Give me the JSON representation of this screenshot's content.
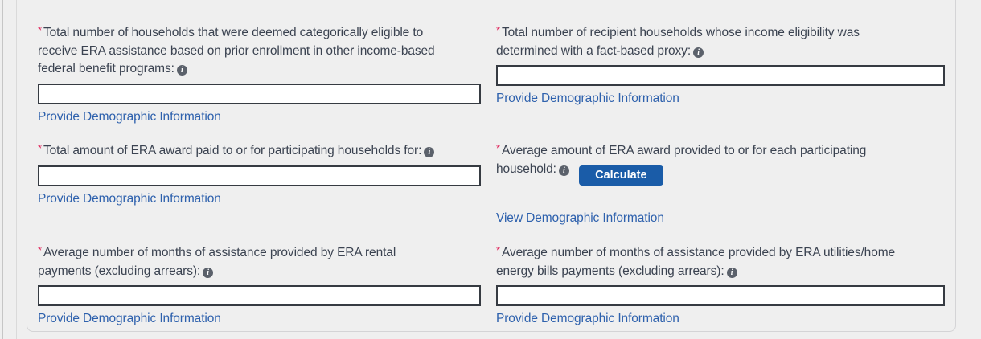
{
  "colors": {
    "background": "#efefef",
    "panel_border": "#d4d4d6",
    "label_text": "#3b4351",
    "required_red": "#e12c60",
    "info_icon_gray": "#5b616b",
    "input_border": "#363b42",
    "link_blue": "#2e61ad",
    "button_blue": "#1a5ca8"
  },
  "symbols": {
    "required": "*",
    "info": "i"
  },
  "fields": [
    {
      "label": "Total number of households that were deemed categorically eligible to receive ERA assistance based on prior enrollment in other income-based federal benefit programs:",
      "lines": [
        "Total number of households that were deemed categorically eligible to",
        "receive ERA assistance based on prior enrollment in other income-based",
        "federal benefit programs:"
      ],
      "value": "",
      "link_label": "Provide Demographic Information"
    },
    {
      "label": "Total number of recipient households whose income eligibility was determined with a fact-based proxy:",
      "lines": [
        "Total number of recipient households whose income eligibility was",
        "determined with a fact-based proxy:"
      ],
      "value": "",
      "link_label": "Provide Demographic Information"
    },
    {
      "label": "Total amount of ERA award paid to or for participating households for:",
      "lines": [
        "Total amount of ERA award paid to or for participating households for:"
      ],
      "value": "",
      "link_label": "Provide Demographic Information"
    },
    {
      "label": "Average amount of ERA award provided to or for each participating household:",
      "lines": [
        "Average amount of ERA award provided to or for each participating",
        "household:"
      ],
      "button_label": "Calculate",
      "link_label": "View Demographic Information"
    },
    {
      "label": "Average number of months of assistance provided by ERA rental payments (excluding arrears):",
      "lines": [
        "Average number of months of assistance provided by ERA rental",
        "payments (excluding arrears):"
      ],
      "value": "",
      "link_label": "Provide Demographic Information"
    },
    {
      "label": "Average number of months of assistance provided by ERA utilities/home energy bills payments (excluding arrears):",
      "lines": [
        "Average number of months of assistance provided by ERA utilities/home",
        "energy bills payments (excluding arrears):"
      ],
      "value": "",
      "link_label": "Provide Demographic Information"
    }
  ]
}
